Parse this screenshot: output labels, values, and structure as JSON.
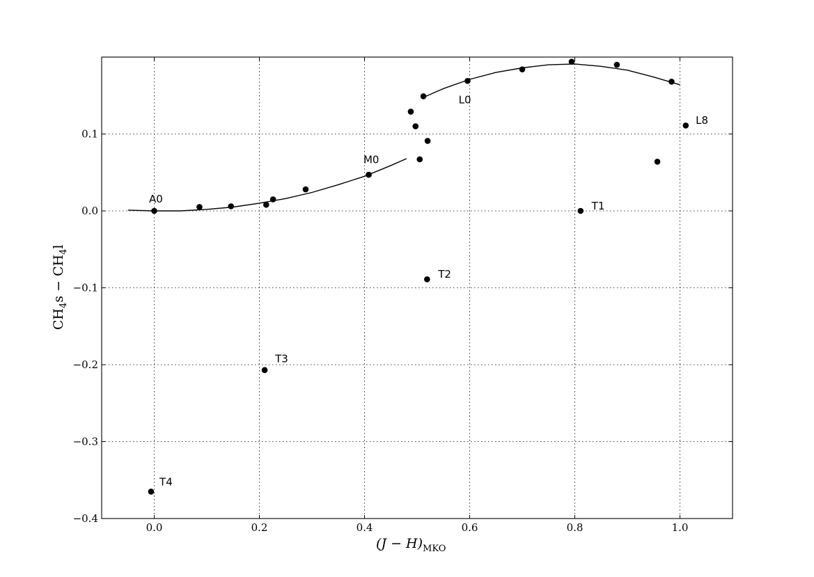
{
  "chart_data": {
    "type": "scatter",
    "xlabel": {
      "main": "(J − H)",
      "sub": "MKO"
    },
    "ylabel": {
      "main": "CH",
      "sub": "4",
      "rest": "s − CH",
      "sub2": "4",
      "end": "l"
    },
    "xlim": [
      -0.1,
      1.1
    ],
    "ylim": [
      -0.4,
      0.2
    ],
    "xticks": [
      0.0,
      0.2,
      0.4,
      0.6,
      0.8,
      1.0
    ],
    "xtick_labels": [
      "0.0",
      "0.2",
      "0.4",
      "0.6",
      "0.8",
      "1.0"
    ],
    "yticks": [
      -0.4,
      -0.3,
      -0.2,
      -0.1,
      0.0,
      0.1
    ],
    "ytick_labels": [
      "−0.4",
      "−0.3",
      "−0.2",
      "−0.1",
      "0.0",
      "0.1"
    ],
    "grid": true,
    "points": [
      {
        "x": 0.0,
        "y": 0.0
      },
      {
        "x": 0.086,
        "y": 0.005
      },
      {
        "x": 0.146,
        "y": 0.006
      },
      {
        "x": 0.213,
        "y": 0.008
      },
      {
        "x": 0.226,
        "y": 0.015
      },
      {
        "x": 0.288,
        "y": 0.028
      },
      {
        "x": 0.408,
        "y": 0.047
      },
      {
        "x": 0.488,
        "y": 0.129
      },
      {
        "x": 0.497,
        "y": 0.11
      },
      {
        "x": 0.505,
        "y": 0.067
      },
      {
        "x": 0.512,
        "y": 0.149
      },
      {
        "x": 0.52,
        "y": 0.091
      },
      {
        "x": 0.596,
        "y": 0.169
      },
      {
        "x": 0.7,
        "y": 0.184
      },
      {
        "x": 0.794,
        "y": 0.194
      },
      {
        "x": 0.88,
        "y": 0.19
      },
      {
        "x": 0.957,
        "y": 0.064
      },
      {
        "x": 0.984,
        "y": 0.168
      },
      {
        "x": 1.011,
        "y": 0.111
      },
      {
        "x": 0.811,
        "y": 0.0
      },
      {
        "x": 0.519,
        "y": -0.089
      },
      {
        "x": 0.21,
        "y": -0.207
      },
      {
        "x": -0.006,
        "y": -0.365
      }
    ],
    "labels": [
      {
        "text": "A0",
        "x": -0.01,
        "y": 0.011
      },
      {
        "text": "M0",
        "x": 0.398,
        "y": 0.062
      },
      {
        "text": "L0",
        "x": 0.579,
        "y": 0.14
      },
      {
        "text": "L8",
        "x": 1.03,
        "y": 0.113
      },
      {
        "text": "T1",
        "x": 0.832,
        "y": 0.002
      },
      {
        "text": "T2",
        "x": 0.54,
        "y": -0.087
      },
      {
        "text": "T3",
        "x": 0.23,
        "y": -0.197
      },
      {
        "text": "T4",
        "x": 0.01,
        "y": -0.357
      }
    ],
    "fit_lines": [
      {
        "x": [
          -0.05,
          0.0,
          0.05,
          0.1,
          0.15,
          0.2,
          0.25,
          0.3,
          0.35,
          0.4,
          0.45,
          0.48
        ],
        "y": [
          0.001,
          0.0,
          0.0,
          0.002,
          0.005,
          0.01,
          0.016,
          0.024,
          0.034,
          0.045,
          0.059,
          0.068
        ]
      },
      {
        "x": [
          0.51,
          0.55,
          0.6,
          0.65,
          0.7,
          0.75,
          0.8,
          0.85,
          0.9,
          0.95,
          1.0
        ],
        "y": [
          0.147,
          0.159,
          0.171,
          0.18,
          0.186,
          0.19,
          0.191,
          0.188,
          0.183,
          0.174,
          0.164
        ]
      }
    ]
  }
}
